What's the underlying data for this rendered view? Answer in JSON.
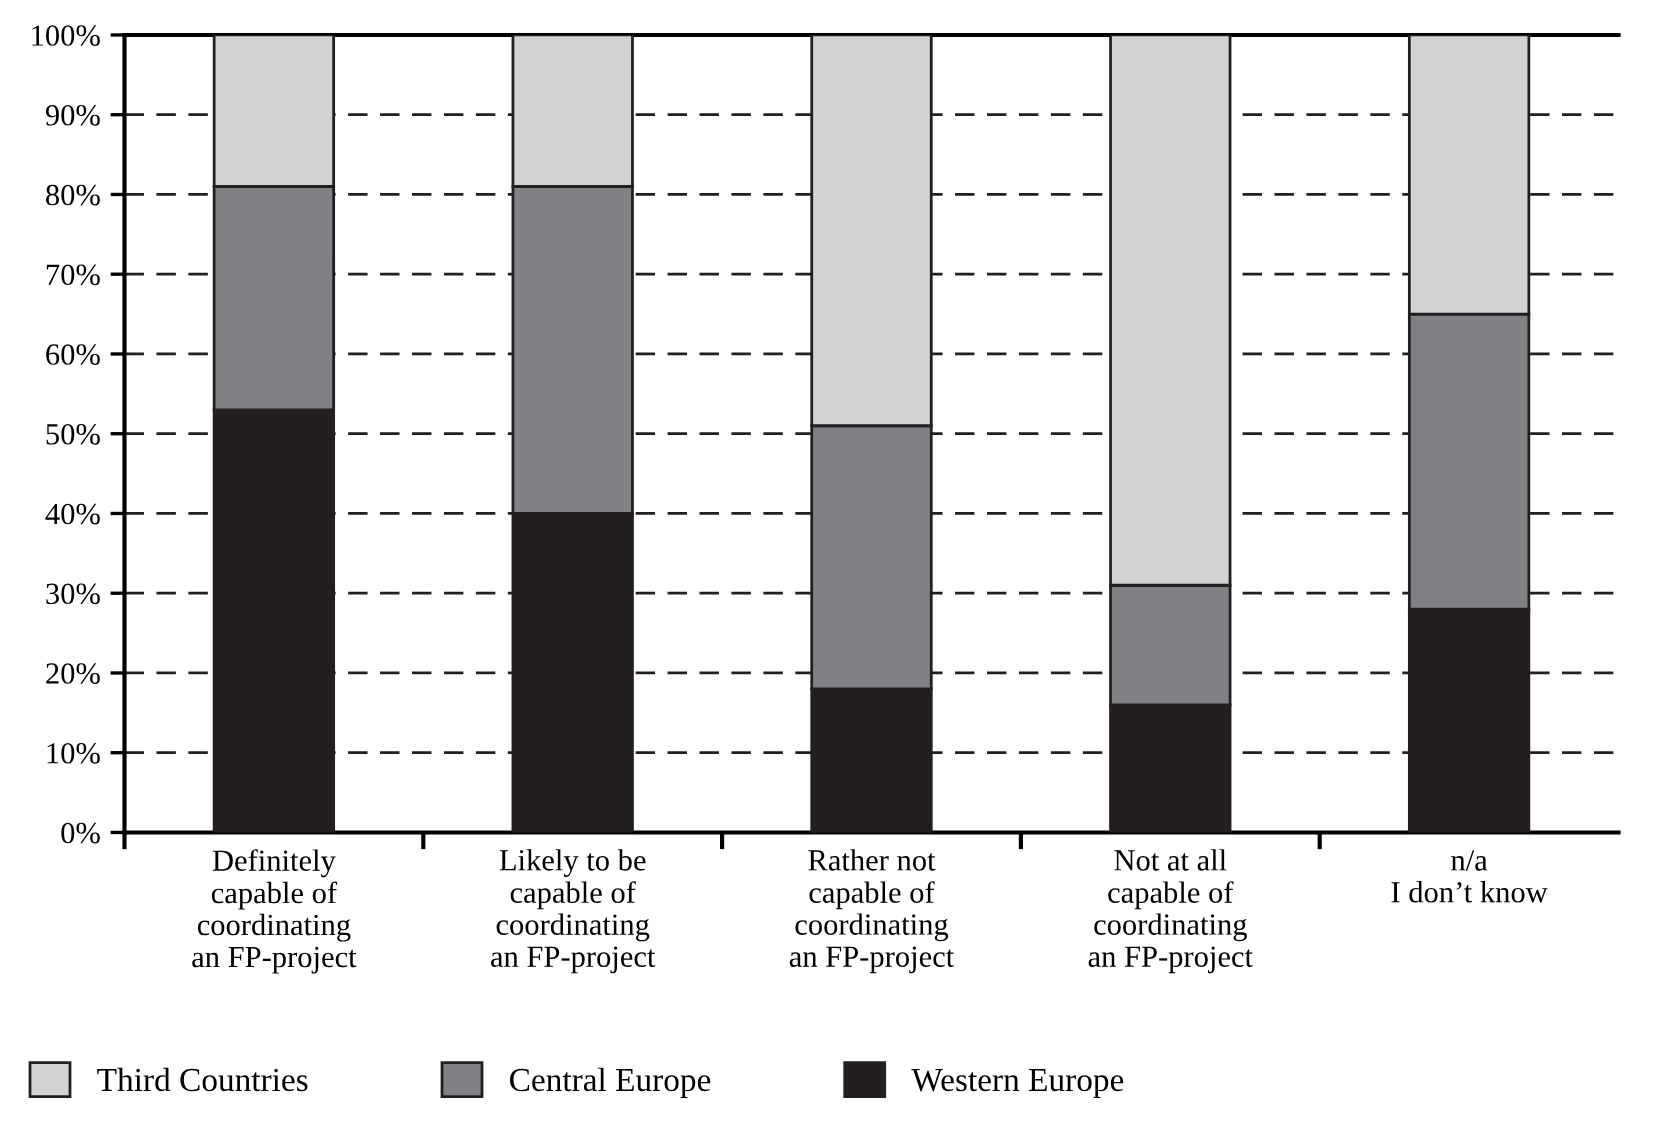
{
  "chart_data": {
    "type": "bar",
    "stacked": true,
    "categories": [
      "Definitely\ncapable of\ncoordinating\nan FP-project",
      "Likely to be\ncapable of\ncoordinating\nan FP-project",
      "Rather not\ncapable of\ncoordinating\nan FP-project",
      "Not at all\ncapable of\ncoordinating\nan FP-project",
      "n/a\nI don’t know"
    ],
    "series": [
      {
        "name": "Western Europe",
        "color": "#231f20",
        "values": [
          53,
          40,
          18,
          16,
          28
        ]
      },
      {
        "name": "Central Europe",
        "color": "#808184",
        "values": [
          28,
          41,
          33,
          15,
          37
        ]
      },
      {
        "name": "Third Countries",
        "color": "#d1d2d4",
        "values": [
          19,
          19,
          49,
          69,
          35
        ]
      }
    ],
    "ylim": [
      0,
      100
    ],
    "yticks": [
      {
        "value": 0,
        "label": "0%"
      },
      {
        "value": 10,
        "label": "10%"
      },
      {
        "value": 20,
        "label": "20%"
      },
      {
        "value": 30,
        "label": "30%"
      },
      {
        "value": 40,
        "label": "40%"
      },
      {
        "value": 50,
        "label": "50%"
      },
      {
        "value": 60,
        "label": "60%"
      },
      {
        "value": 70,
        "label": "70%"
      },
      {
        "value": 80,
        "label": "80%"
      },
      {
        "value": 90,
        "label": "90%"
      },
      {
        "value": 100,
        "label": "100%"
      }
    ],
    "grid": "y",
    "legend": "bottom"
  }
}
